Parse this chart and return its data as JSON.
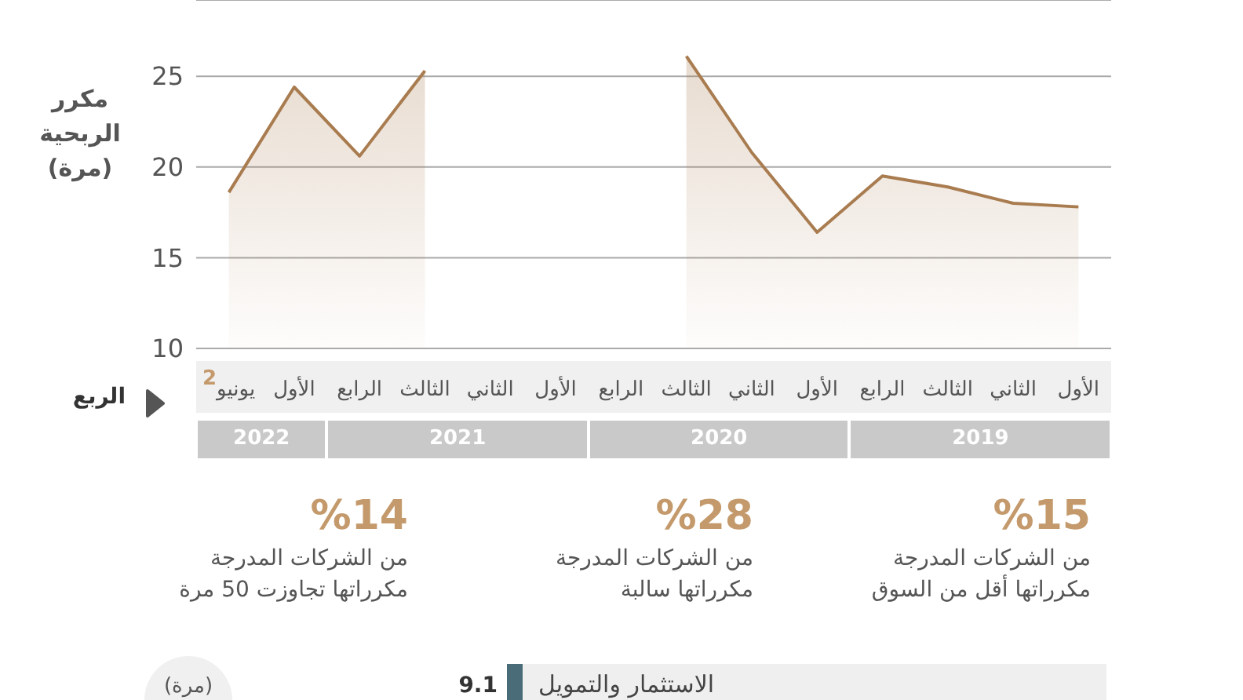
{
  "chart_data": [
    {
      "type": "area",
      "ylabel": "مكرر الربحية (مرة)",
      "xlabel": "الربع",
      "categories": [
        "يونيو$^{2}$",
        "الأول",
        "الرابع",
        "الثالث",
        "الثاني",
        "الأول",
        "الرابع",
        "الثالث",
        "الثاني",
        "الأول",
        "الرابع",
        "الثالث",
        "الثاني",
        "الأول"
      ],
      "series": [
        {
          "color": "#a97c50",
          "values": [
            18.6,
            24.4,
            20.6,
            25.3,
            null,
            null,
            null,
            26.1,
            20.8,
            16.4,
            19.5,
            18.9,
            18.0,
            17.8
          ]
        }
      ],
      "ylim": [
        10,
        29.2
      ],
      "yticks": [
        10,
        15,
        20,
        25
      ],
      "grid": "y",
      "marker": "none",
      "annotations": [
        "2022",
        "2021",
        "2020",
        "2019",
        "%14",
        "من الشركات المدرجة\nمكرراتها تجاوزت 50 مرة",
        "%28",
        "من الشركات المدرجة\nمكرراتها سالبة",
        "%15",
        "من الشركات المدرجة\nمكرراتها أقل من السوق"
      ]
    },
    {
      "type": "bar",
      "orientation": "horizontal",
      "annotations": [
        "(مرة)"
      ],
      "categories": [
        "الاستثمار والتمويل"
      ],
      "series": [
        {
          "color": "#efefef",
          "values": [
            9.1
          ]
        }
      ],
      "data_labels": true
    }
  ]
}
